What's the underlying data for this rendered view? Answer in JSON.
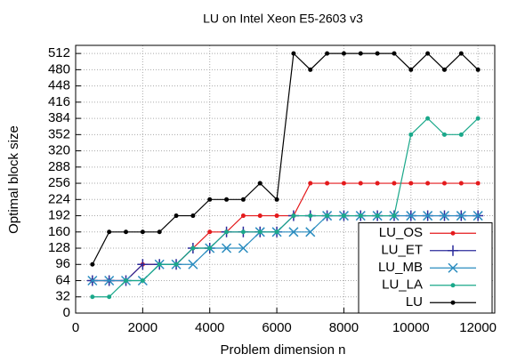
{
  "chart_data": {
    "type": "line",
    "title": "LU on Intel Xeon E5-2603 v3",
    "x_label": "Problem dimension n",
    "y_label": "Optimal block size",
    "x": [
      500,
      1000,
      1500,
      2000,
      2500,
      3000,
      3500,
      4000,
      4500,
      5000,
      5500,
      6000,
      6500,
      7000,
      7500,
      8000,
      8500,
      9000,
      9500,
      10000,
      10500,
      11000,
      11500,
      12000
    ],
    "series": [
      {
        "name": "LU_OS",
        "color": "#e41a1c",
        "marker": "dot",
        "values": [
          64,
          64,
          64,
          96,
          96,
          96,
          128,
          160,
          160,
          192,
          192,
          192,
          192,
          256,
          256,
          256,
          256,
          256,
          256,
          256,
          256,
          256,
          256,
          256
        ]
      },
      {
        "name": "LU_ET",
        "color": "#2b2b9b",
        "marker": "plus",
        "values": [
          64,
          64,
          64,
          96,
          96,
          96,
          128,
          128,
          160,
          160,
          160,
          160,
          192,
          192,
          192,
          192,
          192,
          192,
          192,
          192,
          192,
          192,
          192,
          192
        ]
      },
      {
        "name": "LU_MB",
        "color": "#2a8cbf",
        "marker": "cross",
        "values": [
          64,
          64,
          64,
          64,
          96,
          96,
          96,
          128,
          128,
          128,
          160,
          160,
          160,
          160,
          192,
          192,
          192,
          192,
          192,
          192,
          192,
          192,
          192,
          192
        ]
      },
      {
        "name": "LU_LA",
        "color": "#1aa88a",
        "marker": "dot",
        "values": [
          32,
          32,
          64,
          64,
          96,
          96,
          128,
          128,
          160,
          160,
          160,
          160,
          192,
          192,
          192,
          192,
          192,
          192,
          192,
          352,
          384,
          352,
          352,
          384
        ]
      },
      {
        "name": "LU",
        "color": "#000000",
        "marker": "dot",
        "values": [
          96,
          160,
          160,
          160,
          160,
          192,
          192,
          224,
          224,
          224,
          256,
          224,
          512,
          480,
          512,
          512,
          512,
          512,
          512,
          480,
          512,
          480,
          512,
          480
        ]
      }
    ],
    "xlim": [
      0,
      12500
    ],
    "ylim": [
      0,
      528
    ],
    "xticks": [
      0,
      2000,
      4000,
      6000,
      8000,
      10000,
      12000
    ],
    "yticks": [
      0,
      32,
      64,
      96,
      128,
      160,
      192,
      224,
      256,
      288,
      320,
      352,
      384,
      416,
      448,
      480,
      512
    ],
    "grid": true,
    "legend": "bottom-right"
  }
}
